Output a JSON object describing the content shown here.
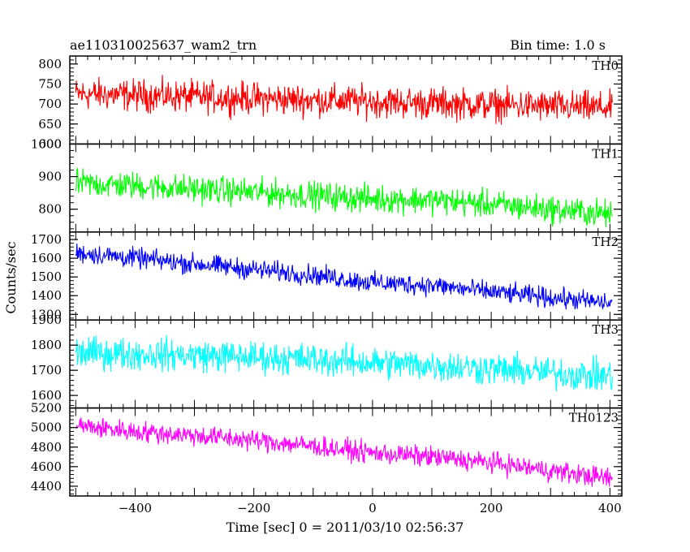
{
  "chart_data": {
    "type": "line",
    "title": "ae110310025637_wam2_trn",
    "subtitle": "Bin time: 1.0 s",
    "xlabel": "Time [sec] 0 = 2011/03/10 02:56:37",
    "ylabel": "Counts/sec",
    "xlim": [
      -510,
      420
    ],
    "xticks": [
      -400,
      -200,
      0,
      200,
      400
    ],
    "grid": false,
    "series": [
      {
        "name": "TH0",
        "color": "#ff0000",
        "ylim": [
          600,
          820
        ],
        "yticks": [
          600,
          650,
          700,
          750,
          800
        ],
        "x": [
          -500,
          -400,
          -300,
          -200,
          -100,
          0,
          100,
          200,
          300,
          400
        ],
        "y": [
          725,
          722,
          718,
          714,
          710,
          706,
          702,
          698,
          694,
          690
        ],
        "noise": 28
      },
      {
        "name": "TH1",
        "color": "#00ff00",
        "ylim": [
          730,
          1000
        ],
        "yticks": [
          800,
          900,
          1000
        ],
        "x": [
          -500,
          -400,
          -300,
          -200,
          -100,
          0,
          100,
          200,
          300,
          400
        ],
        "y": [
          880,
          872,
          862,
          852,
          842,
          832,
          828,
          815,
          800,
          785
        ],
        "noise": 30
      },
      {
        "name": "TH2",
        "color": "#0000ff",
        "ylim": [
          1270,
          1740
        ],
        "yticks": [
          1300,
          1400,
          1500,
          1600,
          1700
        ],
        "x": [
          -500,
          -400,
          -300,
          -200,
          -100,
          0,
          100,
          200,
          300,
          400
        ],
        "y": [
          1630,
          1600,
          1570,
          1540,
          1510,
          1470,
          1455,
          1420,
          1390,
          1360
        ],
        "noise": 38
      },
      {
        "name": "TH3",
        "color": "#00ffff",
        "ylim": [
          1550,
          1900
        ],
        "yticks": [
          1600,
          1700,
          1800,
          1900
        ],
        "x": [
          -500,
          -400,
          -300,
          -200,
          -100,
          0,
          100,
          200,
          300,
          400
        ],
        "y": [
          1770,
          1765,
          1760,
          1752,
          1743,
          1730,
          1720,
          1705,
          1690,
          1675
        ],
        "noise": 45
      },
      {
        "name": "TH0123",
        "color": "#ff00ff",
        "ylim": [
          4300,
          5200
        ],
        "yticks": [
          4400,
          4600,
          4800,
          5000,
          5200
        ],
        "x": [
          -500,
          -400,
          -300,
          -200,
          -100,
          0,
          100,
          200,
          300,
          400
        ],
        "y": [
          5020,
          4960,
          4920,
          4870,
          4810,
          4740,
          4700,
          4640,
          4560,
          4480
        ],
        "noise": 75
      }
    ]
  }
}
